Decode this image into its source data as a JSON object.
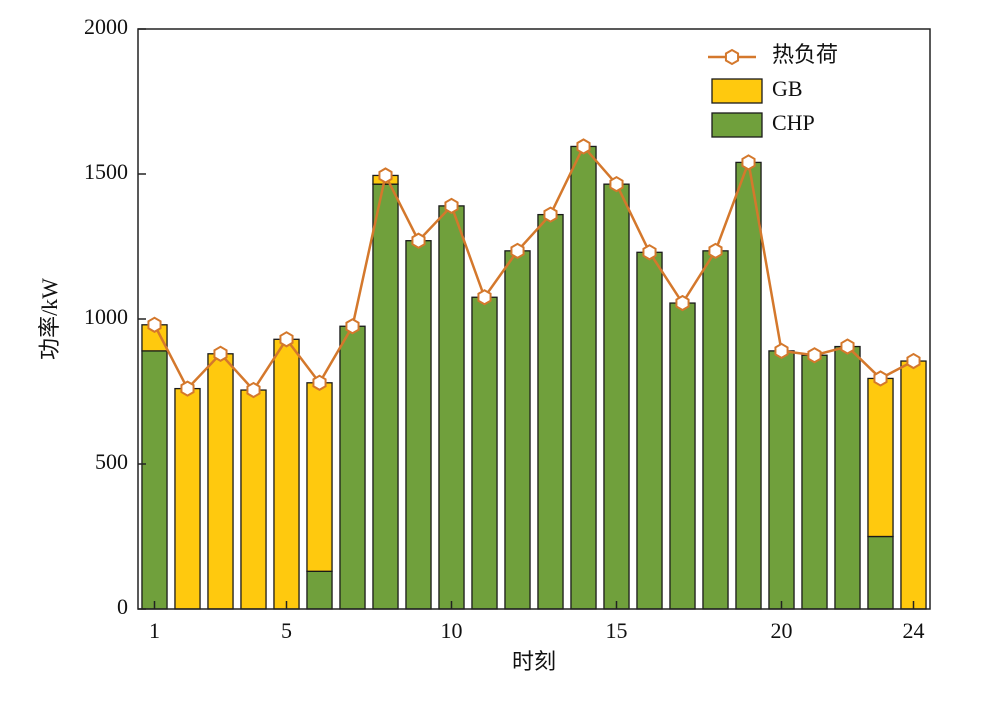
{
  "chart_data": {
    "type": "bar",
    "stacked": true,
    "x_label": "时刻",
    "y_label": "功率/kW",
    "x": [
      1,
      2,
      3,
      4,
      5,
      6,
      7,
      8,
      9,
      10,
      11,
      12,
      13,
      14,
      15,
      16,
      17,
      18,
      19,
      20,
      21,
      22,
      23,
      24
    ],
    "series": [
      {
        "name": "热负荷",
        "type": "line",
        "color": "#d4782c",
        "values": [
          980,
          760,
          880,
          755,
          930,
          780,
          975,
          1495,
          1270,
          1390,
          1075,
          1235,
          1360,
          1595,
          1465,
          1230,
          1055,
          1235,
          1540,
          890,
          875,
          905,
          795,
          855
        ]
      },
      {
        "name": "GB",
        "type": "bar",
        "color": "#ffc90e",
        "values": [
          90,
          760,
          880,
          755,
          930,
          650,
          0,
          30,
          0,
          0,
          0,
          0,
          0,
          0,
          0,
          0,
          0,
          0,
          0,
          0,
          0,
          0,
          545,
          855
        ]
      },
      {
        "name": "CHP",
        "type": "bar",
        "color": "#70a03c",
        "values": [
          890,
          0,
          0,
          0,
          0,
          130,
          975,
          1465,
          1270,
          1390,
          1075,
          1235,
          1360,
          1595,
          1465,
          1230,
          1055,
          1235,
          1540,
          890,
          875,
          905,
          250,
          0
        ]
      }
    ],
    "xlim": [
      0.5,
      24.5
    ],
    "xticks": [
      1,
      5,
      10,
      15,
      20,
      24
    ],
    "ylim": [
      0,
      2000
    ],
    "yticks": [
      0,
      500,
      1000,
      1500,
      2000
    ],
    "legend": "upper right"
  }
}
